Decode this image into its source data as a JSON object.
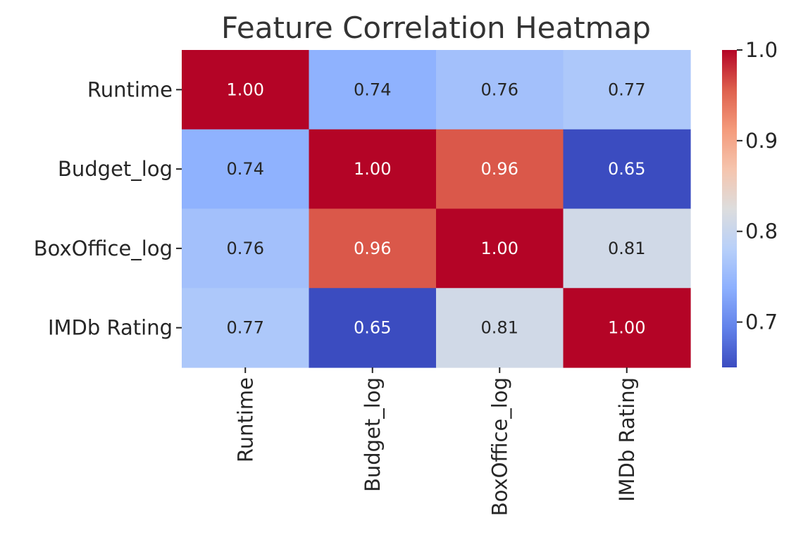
{
  "chart_data": {
    "type": "heatmap",
    "title": "Feature Correlation Heatmap",
    "rows": [
      "Runtime",
      "Budget_log",
      "BoxOffice_log",
      "IMDb Rating"
    ],
    "columns": [
      "Runtime",
      "Budget_log",
      "BoxOffice_log",
      "IMDb Rating"
    ],
    "values": [
      [
        1.0,
        0.74,
        0.76,
        0.77
      ],
      [
        0.74,
        1.0,
        0.96,
        0.65
      ],
      [
        0.76,
        0.96,
        1.0,
        0.81
      ],
      [
        0.77,
        0.65,
        0.81,
        1.0
      ]
    ],
    "annotation_format": "2 decimals",
    "colormap": "coolwarm",
    "colorbar": {
      "range": [
        0.65,
        1.0
      ],
      "ticks": [
        0.7,
        0.8,
        0.9,
        1.0
      ],
      "tick_labels": [
        "0.7",
        "0.8",
        "0.9",
        "1.0"
      ],
      "placement": "right"
    }
  }
}
